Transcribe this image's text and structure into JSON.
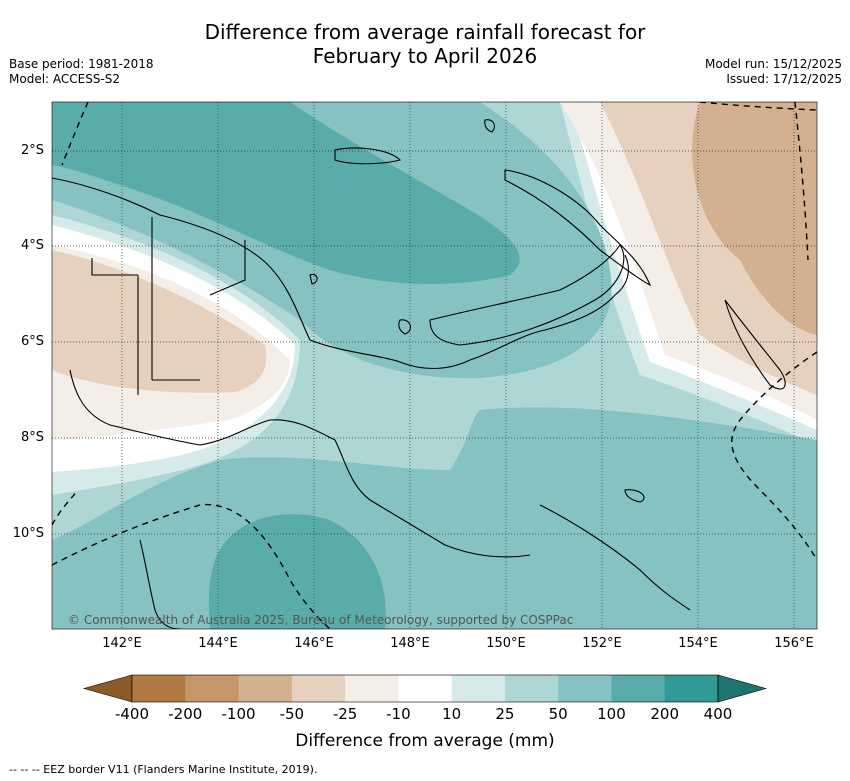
{
  "title": {
    "line1": "Difference from average rainfall forecast for",
    "line2": "February to April 2026"
  },
  "meta": {
    "base_period": "Base period: 1981-2018",
    "model": "Model: ACCESS-S2",
    "model_run": "Model run: 15/12/2025",
    "issued": "Issued: 17/12/2025"
  },
  "axes": {
    "lat_labels": [
      "2°S",
      "4°S",
      "6°S",
      "8°S",
      "10°S"
    ],
    "lon_labels": [
      "142°E",
      "144°E",
      "146°E",
      "148°E",
      "150°E",
      "152°E",
      "154°E",
      "156°E"
    ]
  },
  "credit": "© Commonwealth of Australia 2025, Bureau of Meteorology, supported by COSPPac",
  "colorbar": {
    "ticks": [
      "-400",
      "-200",
      "-100",
      "-50",
      "-25",
      "-10",
      "10",
      "25",
      "50",
      "100",
      "200",
      "400"
    ],
    "colors": [
      "#8a5a2b",
      "#b07a42",
      "#c6956a",
      "#d3b08f",
      "#e6d1bf",
      "#f3eee8",
      "#ffffff",
      "#d6ebe9",
      "#aed6d5",
      "#86c2c1",
      "#5aacaa",
      "#309a96",
      "#1f7470"
    ],
    "label": "Difference from average (mm)"
  },
  "legend": {
    "eez": "--  --  -- EEZ border V11 (Flanders Marine Institute, 2019)."
  }
}
